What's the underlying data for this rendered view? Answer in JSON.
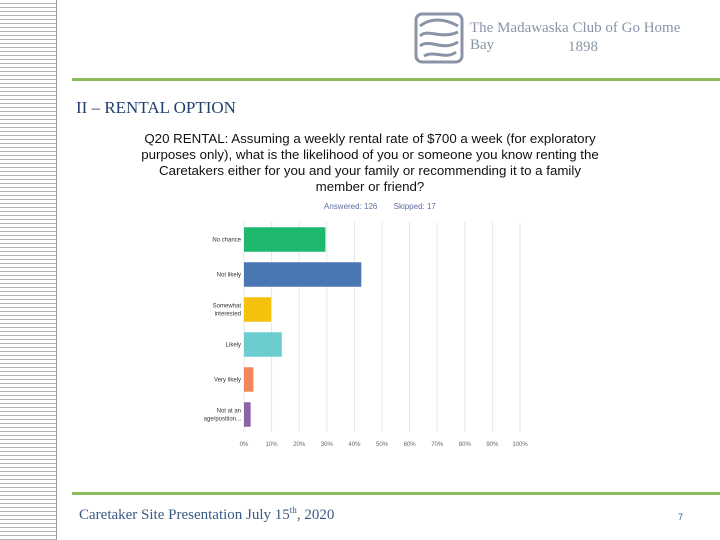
{
  "header": {
    "club_name": "The Madawaska Club of Go Home Bay",
    "club_year": "1898"
  },
  "section_title": "II – RENTAL OPTION",
  "chart_data": {
    "type": "bar",
    "orientation": "horizontal",
    "title": "Q20 RENTAL: Assuming a weekly rental rate of $700 a week (for exploratory purposes only), what is the likelihood of you or someone you know renting the Caretakers either for you and your family or recommending it to a family member or friend?",
    "answered": "Answered: 126",
    "skipped": "Skipped: 17",
    "categories": [
      "No chance",
      "Not likely",
      "Somewhat interested",
      "Likely",
      "Very likely",
      "Not at an age/position..."
    ],
    "category_lines": [
      [
        "No chance"
      ],
      [
        "Not likely"
      ],
      [
        "Somewhat",
        "interested"
      ],
      [
        "Likely"
      ],
      [
        "Very likely"
      ],
      [
        "Not at an",
        "age/position..."
      ]
    ],
    "values": [
      29.5,
      42.5,
      9.8,
      13.7,
      3.4,
      2.4
    ],
    "colors": [
      "#1eb76e",
      "#4a76b4",
      "#f4c20d",
      "#6ccdd1",
      "#f2885a",
      "#8c63a7"
    ],
    "xlim": [
      0,
      100
    ],
    "xticks": [
      "0%",
      "10%",
      "20%",
      "30%",
      "40%",
      "50%",
      "60%",
      "70%",
      "80%",
      "90%",
      "100%"
    ],
    "grid": true
  },
  "footer": {
    "text": "Caretaker Site Presentation July 15",
    "sup": "th",
    "text_after": ", 2020",
    "page_number": "7"
  }
}
